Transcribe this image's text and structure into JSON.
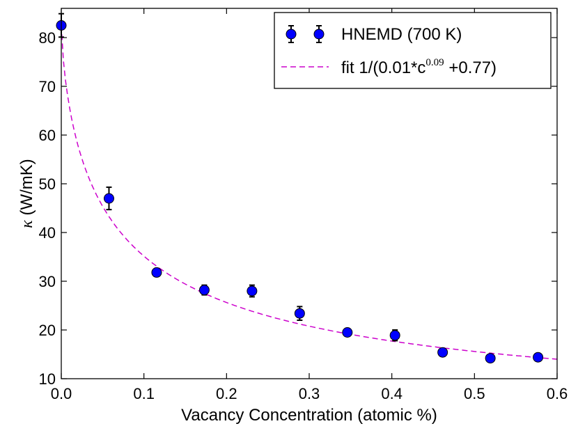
{
  "chart_data": {
    "type": "scatter",
    "xlabel": "Vacancy Concentration (atomic %)",
    "ylabel_symbol": "κ",
    "ylabel_unit": " (W/mK)",
    "xlim": [
      0.0,
      0.6
    ],
    "ylim": [
      10,
      86
    ],
    "xticks": [
      0.0,
      0.1,
      0.2,
      0.3,
      0.4,
      0.5,
      0.6
    ],
    "xtick_labels": [
      "0.0",
      "0.1",
      "0.2",
      "0.3",
      "0.4",
      "0.5",
      "0.6"
    ],
    "yticks": [
      10,
      20,
      30,
      40,
      50,
      60,
      70,
      80
    ],
    "ytick_labels": [
      "10",
      "20",
      "30",
      "40",
      "50",
      "60",
      "70",
      "80"
    ],
    "grid": false,
    "legend_position": "top-right",
    "series": [
      {
        "name": "HNEMD (700 K)",
        "kind": "errorbar",
        "color": "#0000ff",
        "x": [
          0.0,
          0.0577,
          0.1154,
          0.1731,
          0.2308,
          0.2885,
          0.3462,
          0.4038,
          0.4615,
          0.5192,
          0.5769
        ],
        "y": [
          82.5,
          47.0,
          31.8,
          28.2,
          28.0,
          23.4,
          19.5,
          18.9,
          15.4,
          14.2,
          14.4
        ],
        "yerr": [
          2.4,
          2.3,
          0.6,
          1.0,
          1.2,
          1.4,
          0.5,
          1.1,
          0.6,
          0.4,
          0.4
        ]
      },
      {
        "name_prefix": "fit 1/(0.01*c",
        "name_sup": "0.09",
        "name_suffix": " +0.77)",
        "kind": "fit-line",
        "color": "#cc00cc",
        "style": "dashed",
        "formula_display": "1/(0.01*c^0.09 + 0.77)"
      }
    ]
  }
}
